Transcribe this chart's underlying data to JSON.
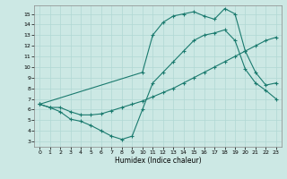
{
  "xlabel": "Humidex (Indice chaleur)",
  "bg_color": "#cce8e4",
  "grid_color": "#b0d8d4",
  "line_color": "#1a7a6e",
  "xlim": [
    -0.5,
    23.5
  ],
  "ylim": [
    2.5,
    15.8
  ],
  "xticks": [
    0,
    1,
    2,
    3,
    4,
    5,
    6,
    7,
    8,
    9,
    10,
    11,
    12,
    13,
    14,
    15,
    16,
    17,
    18,
    19,
    20,
    21,
    22,
    23
  ],
  "yticks": [
    3,
    4,
    5,
    6,
    7,
    8,
    9,
    10,
    11,
    12,
    13,
    14,
    15
  ],
  "curve1_x": [
    0,
    1,
    2,
    3,
    4,
    5,
    6,
    7,
    8,
    9,
    10,
    11,
    12,
    13,
    14,
    15,
    16,
    17,
    18,
    19,
    20,
    21,
    22,
    23
  ],
  "curve1_y": [
    6.5,
    6.2,
    6.2,
    5.8,
    5.5,
    5.5,
    5.6,
    5.9,
    6.2,
    6.5,
    6.8,
    7.2,
    7.6,
    8.0,
    8.5,
    9.0,
    9.5,
    10.0,
    10.5,
    11.0,
    11.5,
    12.0,
    12.5,
    12.8
  ],
  "curve2_x": [
    0,
    10,
    11,
    12,
    13,
    14,
    15,
    16,
    17,
    18,
    19,
    20,
    21,
    22,
    23
  ],
  "curve2_y": [
    6.5,
    9.5,
    13.0,
    14.2,
    14.8,
    15.0,
    15.2,
    14.8,
    14.5,
    15.5,
    15.0,
    11.5,
    9.5,
    8.3,
    8.5
  ],
  "curve3_x": [
    0,
    1,
    2,
    3,
    4,
    5,
    6,
    7,
    8,
    9,
    10,
    11,
    12,
    13,
    14,
    15,
    16,
    17,
    18,
    19,
    20,
    21,
    22,
    23
  ],
  "curve3_y": [
    6.5,
    6.2,
    5.8,
    5.1,
    4.9,
    4.5,
    4.0,
    3.5,
    3.2,
    3.5,
    6.0,
    8.5,
    9.5,
    10.5,
    11.5,
    12.5,
    13.0,
    13.2,
    13.5,
    12.5,
    9.8,
    8.5,
    7.8,
    7.0
  ]
}
